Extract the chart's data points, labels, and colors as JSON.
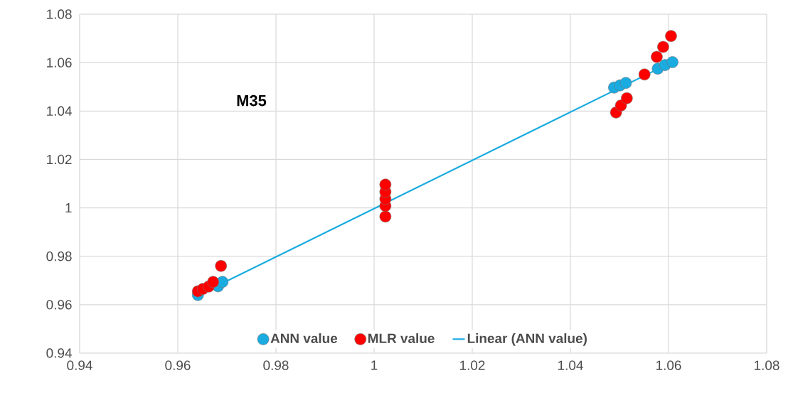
{
  "chart_data": {
    "type": "scatter",
    "marker": "circle",
    "grid": true,
    "legend": "bottom",
    "xlim": [
      0.94,
      1.08
    ],
    "ylim": [
      0.94,
      1.08
    ],
    "xticks": [
      0.94,
      0.96,
      0.98,
      1,
      1.02,
      1.04,
      1.06,
      1.08
    ],
    "yticks": [
      0.94,
      0.96,
      0.98,
      1,
      1.02,
      1.04,
      1.06,
      1.08
    ],
    "annotations": [
      "M35"
    ],
    "series": [
      {
        "name": "ANN value",
        "color": "#1aabe0",
        "x": [
          0.9641,
          0.9682,
          0.9691,
          1.0489,
          1.0501,
          1.0513,
          1.0578,
          1.0593,
          1.0608
        ],
        "values": [
          0.964,
          0.9676,
          0.9694,
          1.0497,
          1.0506,
          1.0516,
          1.0575,
          1.059,
          1.0602
        ]
      },
      {
        "name": "MLR value",
        "color": "#ff0000",
        "x": [
          0.9641,
          0.9651,
          0.9663,
          0.9672,
          0.9688,
          1.0023,
          1.0023,
          1.0023,
          1.0023,
          1.0023,
          1.0493,
          1.0503,
          1.0515,
          1.0551,
          1.0576,
          1.0589,
          1.0605
        ],
        "values": [
          0.9655,
          0.9665,
          0.9675,
          0.9694,
          0.976,
          0.9964,
          1.0008,
          1.0037,
          1.0066,
          1.0096,
          1.0394,
          1.0423,
          1.0453,
          1.0551,
          1.0624,
          1.0665,
          1.071
        ]
      },
      {
        "name": "Linear (ANN value)",
        "type": "line",
        "marker": "none",
        "color": "#1aabe0",
        "x": [
          0.9645,
          1.0605
        ],
        "values": [
          0.9643,
          1.06
        ]
      }
    ]
  }
}
